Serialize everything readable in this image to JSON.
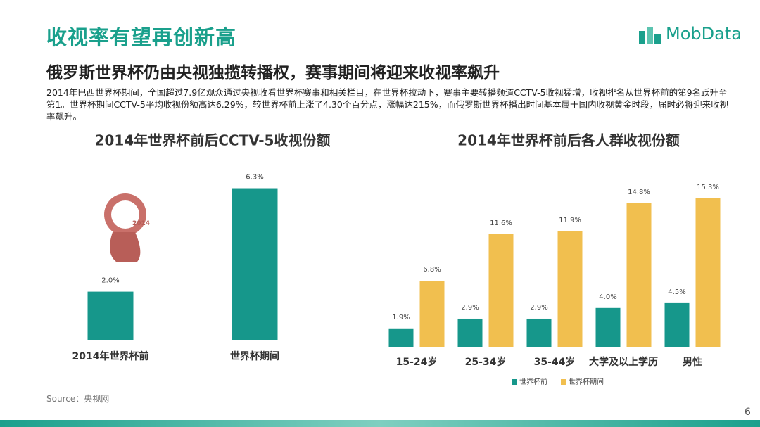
{
  "header": {
    "title": "收视率有望再创新高",
    "logo": "MobData",
    "subtitle": "俄罗斯世界杯仍由央视独揽转播权，赛事期间将迎来收视率飙升",
    "body": "2014年巴西世界杯期间，全国超过7.9亿观众通过央视收看世界杯赛事和相关栏目，在世界杯拉动下，赛事主要转播频道CCTV-5收视猛增，收视排名从世界杯前的第9名跃升至第1。世界杯期间CCTV-5平均收视份额高达6.29%，较世界杯前上涨了4.30个百分点，涨幅达215%，而俄罗斯世界杯播出时间基本属于国内收视黄金时段，届时必将迎来收视率飙升。"
  },
  "chart_data": [
    {
      "type": "bar",
      "title": "2014年世界杯前后CCTV-5收视份额",
      "categories": [
        "2014年世界杯前",
        "世界杯期间"
      ],
      "values": [
        2.0,
        6.3
      ],
      "value_labels": [
        "2.0%",
        "6.3%"
      ],
      "color": "#16978b"
    },
    {
      "type": "bar",
      "title": "2014年世界杯前后各人群收视份额",
      "categories": [
        "15-24岁",
        "25-34岁",
        "35-44岁",
        "大学及以上学历",
        "男性"
      ],
      "series": [
        {
          "name": "世界杯前",
          "color": "#16978b",
          "values": [
            1.9,
            2.9,
            2.9,
            4.0,
            4.5
          ],
          "value_labels": [
            "1.9%",
            "2.9%",
            "2.9%",
            "4.0%",
            "4.5%"
          ]
        },
        {
          "name": "世界杯期间",
          "color": "#f1bf4f",
          "values": [
            6.8,
            11.6,
            11.9,
            14.8,
            15.3
          ],
          "value_labels": [
            "6.8%",
            "11.6%",
            "11.9%",
            "14.8%",
            "15.3%"
          ]
        }
      ]
    }
  ],
  "footer": {
    "source": "Source：央视网",
    "page": "6"
  }
}
